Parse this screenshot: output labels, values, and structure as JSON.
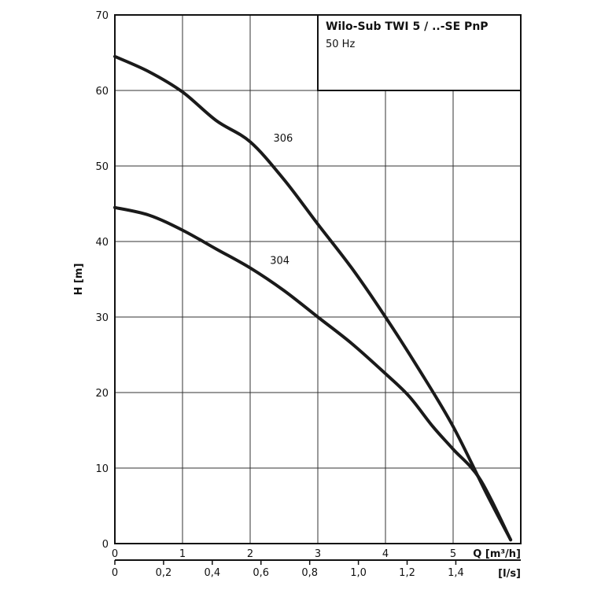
{
  "chart_data": {
    "type": "line",
    "title": "Wilo-Sub TWI 5 / ..-SE PnP",
    "subtitle": "50 Hz",
    "xlabel": "Q [m³/h]",
    "x2label": "[l/s]",
    "ylabel": "H [m]",
    "xlim": [
      0,
      6
    ],
    "ylim": [
      0,
      70
    ],
    "x_ticks": [
      "0",
      "1",
      "2",
      "3",
      "4",
      "5"
    ],
    "x2_ticks": [
      "0",
      "0,2",
      "0,4",
      "0,6",
      "0,8",
      "1,0",
      "1,2",
      "1,4"
    ],
    "y_ticks": [
      "0",
      "10",
      "20",
      "30",
      "40",
      "50",
      "60",
      "70"
    ],
    "grid": true,
    "legend_position": "top-right",
    "series": [
      {
        "name": "306",
        "points": [
          [
            0,
            64.5
          ],
          [
            0.5,
            62.5
          ],
          [
            1,
            59.8
          ],
          [
            1.5,
            56
          ],
          [
            2,
            53.2
          ],
          [
            2.5,
            48.2
          ],
          [
            3,
            42.3
          ],
          [
            3.5,
            36.5
          ],
          [
            4,
            30
          ],
          [
            4.5,
            23
          ],
          [
            5,
            15.5
          ],
          [
            5.5,
            6.5
          ],
          [
            5.85,
            0.5
          ]
        ]
      },
      {
        "name": "304",
        "points": [
          [
            0,
            44.5
          ],
          [
            0.5,
            43.5
          ],
          [
            1,
            41.5
          ],
          [
            1.5,
            39
          ],
          [
            2,
            36.5
          ],
          [
            2.5,
            33.5
          ],
          [
            3,
            30
          ],
          [
            3.5,
            26.5
          ],
          [
            4,
            22.5
          ],
          [
            4.35,
            19.5
          ],
          [
            4.7,
            15.5
          ],
          [
            5,
            12.5
          ],
          [
            5.4,
            8.5
          ],
          [
            5.85,
            0.5
          ]
        ]
      }
    ]
  }
}
